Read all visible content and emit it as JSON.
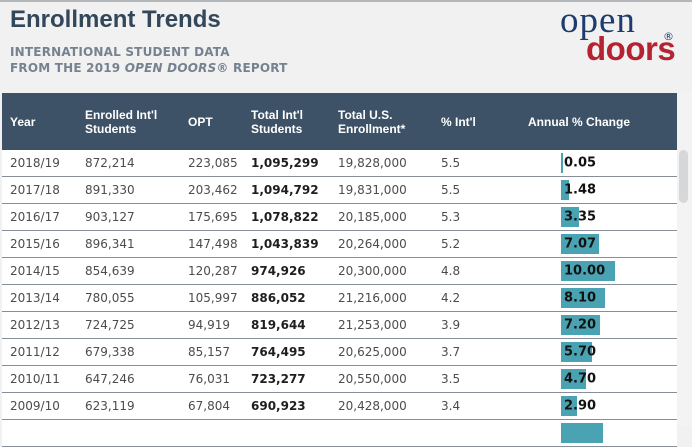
{
  "page": {
    "title": "Enrollment Trends",
    "subtitle_line1": "INTERNATIONAL STUDENT DATA",
    "subtitle_line2_pre": "FROM THE 2019 ",
    "subtitle_line2_italic": "OPEN DOORS®",
    "subtitle_line2_post": " REPORT"
  },
  "logo": {
    "word1": "open",
    "word2": "doors",
    "registered_mark": "®",
    "blue": "#1e3c6d",
    "red": "#b52232"
  },
  "colors": {
    "header_bg": "#3d5266",
    "bar_teal": "#4aa3b2",
    "row_border": "#878e97",
    "title_text": "#33475a",
    "subtitle_text": "#76828f",
    "page_bg": "#f1f1f2"
  },
  "table": {
    "columns": [
      {
        "lines": [
          "Year"
        ]
      },
      {
        "lines": [
          "Enrolled Int'l",
          "Students"
        ]
      },
      {
        "lines": [
          "OPT"
        ]
      },
      {
        "lines": [
          "Total Int'l",
          "Students"
        ]
      },
      {
        "lines": [
          "Total U.S.",
          "Enrollment*"
        ]
      },
      {
        "lines": [
          "% Int'l"
        ]
      },
      {
        "lines": [
          "Annual % Change"
        ]
      }
    ],
    "rows": [
      {
        "year": "2018/19",
        "enrolled": "872,214",
        "opt": "223,085",
        "total_intl": "1,095,299",
        "total_us": "19,828,000",
        "pct_intl": "5.5",
        "annual_change": "0.05"
      },
      {
        "year": "2017/18",
        "enrolled": "891,330",
        "opt": "203,462",
        "total_intl": "1,094,792",
        "total_us": "19,831,000",
        "pct_intl": "5.5",
        "annual_change": "1.48"
      },
      {
        "year": "2016/17",
        "enrolled": "903,127",
        "opt": "175,695",
        "total_intl": "1,078,822",
        "total_us": "20,185,000",
        "pct_intl": "5.3",
        "annual_change": "3.35"
      },
      {
        "year": "2015/16",
        "enrolled": "896,341",
        "opt": "147,498",
        "total_intl": "1,043,839",
        "total_us": "20,264,000",
        "pct_intl": "5.2",
        "annual_change": "7.07"
      },
      {
        "year": "2014/15",
        "enrolled": "854,639",
        "opt": "120,287",
        "total_intl": "974,926",
        "total_us": "20,300,000",
        "pct_intl": "4.8",
        "annual_change": "10.00"
      },
      {
        "year": "2013/14",
        "enrolled": "780,055",
        "opt": "105,997",
        "total_intl": "886,052",
        "total_us": "21,216,000",
        "pct_intl": "4.2",
        "annual_change": "8.10"
      },
      {
        "year": "2012/13",
        "enrolled": "724,725",
        "opt": "94,919",
        "total_intl": "819,644",
        "total_us": "21,253,000",
        "pct_intl": "3.9",
        "annual_change": "7.20"
      },
      {
        "year": "2011/12",
        "enrolled": "679,338",
        "opt": "85,157",
        "total_intl": "764,495",
        "total_us": "20,625,000",
        "pct_intl": "3.7",
        "annual_change": "5.70"
      },
      {
        "year": "2010/11",
        "enrolled": "647,246",
        "opt": "76,031",
        "total_intl": "723,277",
        "total_us": "20,550,000",
        "pct_intl": "3.5",
        "annual_change": "4.70"
      },
      {
        "year": "2009/10",
        "enrolled": "623,119",
        "opt": "67,804",
        "total_intl": "690,923",
        "total_us": "20,428,000",
        "pct_intl": "3.4",
        "annual_change": "2.90"
      }
    ],
    "partial_next_row": {
      "annual_change_bar_estimate": 7.8
    }
  },
  "chart_data": {
    "type": "table",
    "title": "Enrollment Trends",
    "subtitle": "International Student Data from the 2019 Open Doors® Report",
    "columns": [
      "Year",
      "Enrolled Int'l Students",
      "OPT",
      "Total Int'l Students",
      "Total U.S. Enrollment*",
      "% Int'l",
      "Annual % Change"
    ],
    "rows": [
      [
        "2018/19",
        872214,
        223085,
        1095299,
        19828000,
        5.5,
        0.05
      ],
      [
        "2017/18",
        891330,
        203462,
        1094792,
        19831000,
        5.5,
        1.48
      ],
      [
        "2016/17",
        903127,
        175695,
        1078822,
        20185000,
        5.3,
        3.35
      ],
      [
        "2015/16",
        896341,
        147498,
        1043839,
        20264000,
        5.2,
        7.07
      ],
      [
        "2014/15",
        854639,
        120287,
        974926,
        20300000,
        4.8,
        10.0
      ],
      [
        "2013/14",
        780055,
        105997,
        886052,
        21216000,
        4.2,
        8.1
      ],
      [
        "2012/13",
        724725,
        94919,
        819644,
        21253000,
        3.9,
        7.2
      ],
      [
        "2011/12",
        679338,
        85157,
        764495,
        20625000,
        3.7,
        5.7
      ],
      [
        "2010/11",
        647246,
        76031,
        723277,
        20550000,
        3.5,
        4.7
      ],
      [
        "2009/10",
        623119,
        67804,
        690923,
        20428000,
        3.4,
        2.9
      ]
    ],
    "embedded_bar": {
      "type": "bar",
      "series_name": "Annual % Change",
      "categories": [
        "2018/19",
        "2017/18",
        "2016/17",
        "2015/16",
        "2014/15",
        "2013/14",
        "2012/13",
        "2011/12",
        "2010/11",
        "2009/10"
      ],
      "values": [
        0.05,
        1.48,
        3.35,
        7.07,
        10.0,
        8.1,
        7.2,
        5.7,
        4.7,
        2.9
      ],
      "xlim": [
        0,
        10
      ]
    }
  }
}
